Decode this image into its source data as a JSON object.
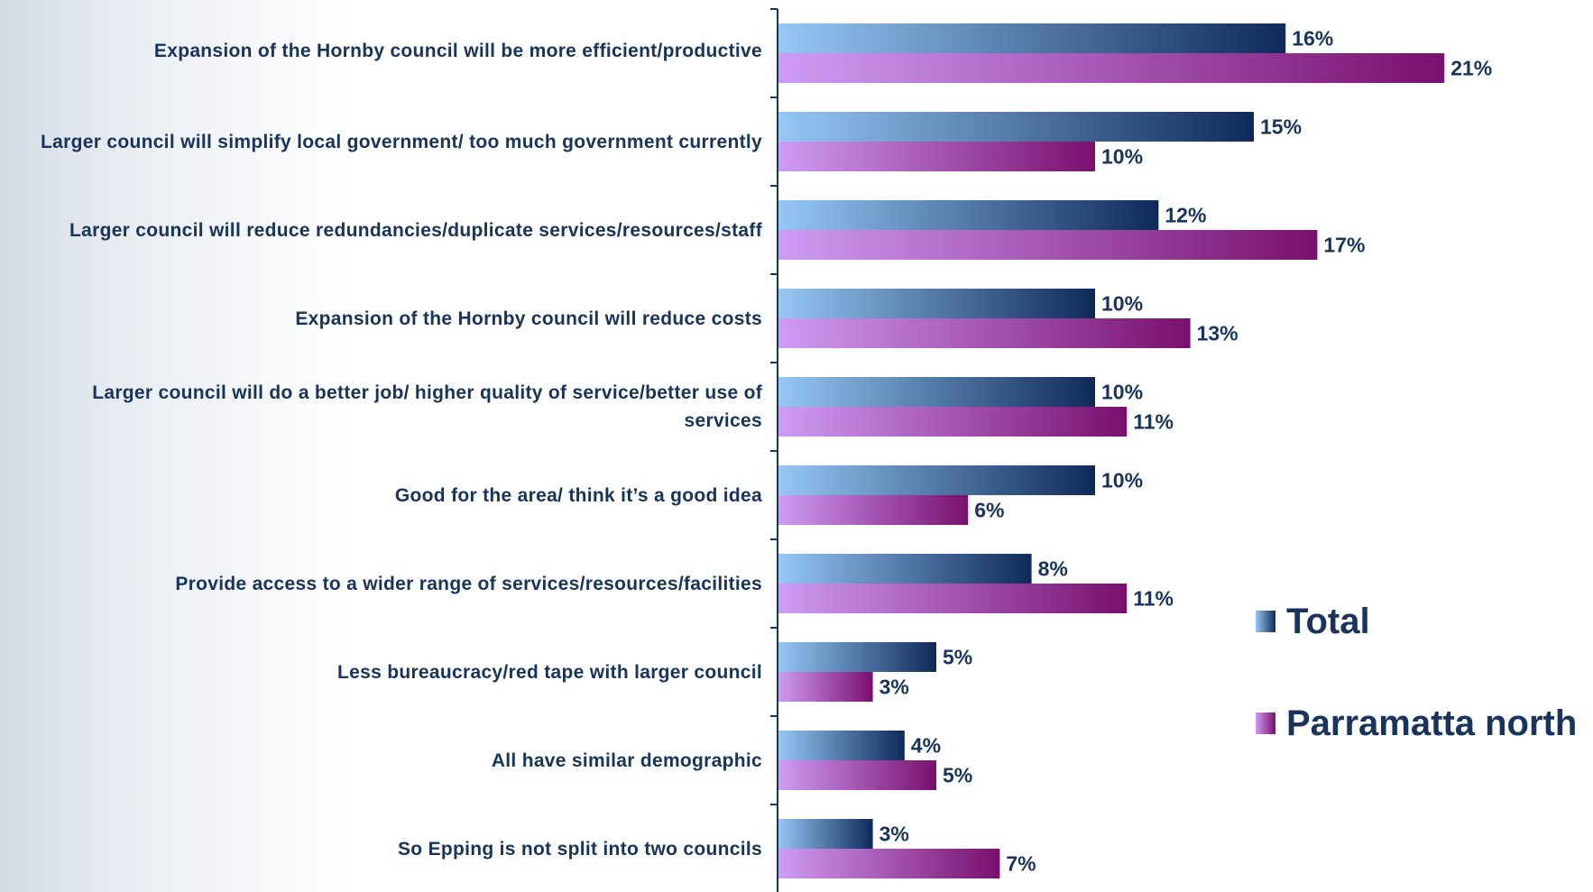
{
  "chart_data": {
    "type": "bar",
    "orientation": "horizontal",
    "categories": [
      "Expansion of the Hornby council will be more efficient/productive",
      "Larger council will simplify local government/ too much government currently",
      "Larger council will reduce redundancies/duplicate services/resources/staff",
      "Expansion of the Hornby council will reduce costs",
      "Larger council will do a better job/ higher quality of service/better use of services",
      "Good for the area/ think it’s a good idea",
      "Provide access to a wider range of services/resources/facilities",
      "Less bureaucracy/red tape with larger council",
      "All have similar demographic",
      "So Epping is not split into two councils"
    ],
    "series": [
      {
        "name": "Total",
        "values": [
          16,
          15,
          12,
          10,
          10,
          10,
          8,
          5,
          4,
          3
        ],
        "value_labels": [
          "16%",
          "15%",
          "12%",
          "10%",
          "10%",
          "10%",
          "8%",
          "5%",
          "4%",
          "3%"
        ],
        "color_light": "#96c8f5",
        "color_dark": "#0f2a5a"
      },
      {
        "name": "Parramatta north",
        "values": [
          21,
          10,
          17,
          13,
          11,
          6,
          11,
          3,
          5,
          7
        ],
        "value_labels": [
          "21%",
          "10%",
          "17%",
          "13%",
          "11%",
          "6%",
          "11%",
          "3%",
          "5%",
          "7%"
        ],
        "color_light": "#cf9cf5",
        "color_dark": "#7a0f6e"
      }
    ],
    "xlim": [
      0,
      23
    ],
    "legend_position": "right",
    "title": "",
    "xlabel": "",
    "ylabel": ""
  },
  "colors": {
    "label_text": "#17345e",
    "axis": "#17345e"
  }
}
